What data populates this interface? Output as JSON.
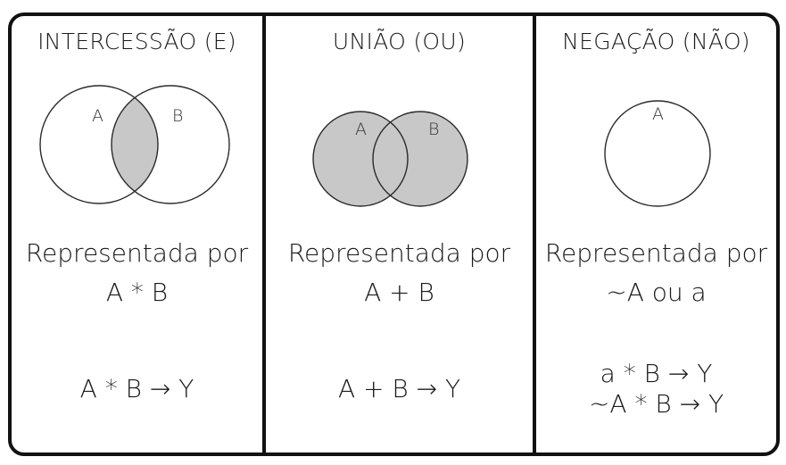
{
  "panels": [
    {
      "id": "intersection",
      "title": "INTERCESSÃO (E)",
      "set_labels": [
        "A",
        "B"
      ],
      "shaded_region": "intersection",
      "representation_label": "Representada por",
      "representation_expr": "A * B",
      "examples": [
        "A * B  → Y"
      ]
    },
    {
      "id": "union",
      "title": "UNIÃO (OU)",
      "set_labels": [
        "A",
        "B"
      ],
      "shaded_region": "union",
      "representation_label": "Representada por",
      "representation_expr": "A + B",
      "examples": [
        "A + B  → Y"
      ]
    },
    {
      "id": "negation",
      "title": "NEGAÇÃO (NÃO)",
      "set_labels": [
        "A"
      ],
      "shaded_region": "none",
      "representation_label": "Representada por",
      "representation_expr": "~A ou a",
      "examples": [
        "a * B  → Y",
        "~A * B  → Y"
      ]
    }
  ],
  "colors": {
    "border": "#111111",
    "shade": "#c8c8c8",
    "circle_stroke": "#2a2a2a",
    "text": "#1a1a1a"
  }
}
